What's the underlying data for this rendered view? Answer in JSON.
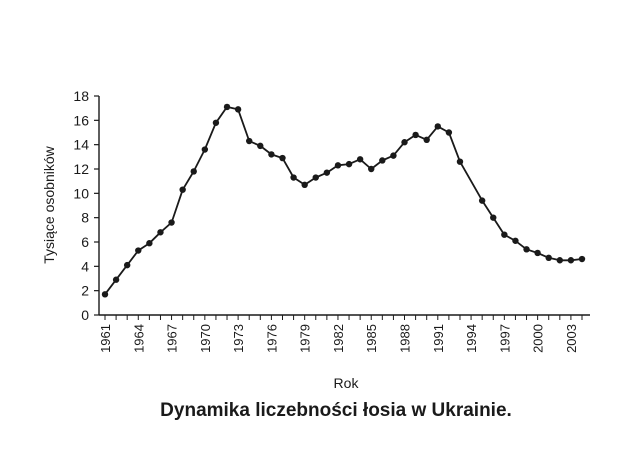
{
  "chart_data": {
    "type": "line",
    "title": "Dynamika liczebności łosia w Ukrainie.",
    "xlabel": "Rok",
    "ylabel": "Tysiące osobników",
    "xlim": [
      1961,
      2004
    ],
    "ylim": [
      0,
      18
    ],
    "x_ticks": [
      1961,
      1964,
      1967,
      1970,
      1973,
      1976,
      1979,
      1982,
      1985,
      1988,
      1991,
      1994,
      1997,
      2000,
      2003
    ],
    "y_ticks": [
      0,
      2,
      4,
      6,
      8,
      10,
      12,
      14,
      16,
      18
    ],
    "grid": false,
    "legend": "none",
    "series": [
      {
        "color": "#1a1a1a",
        "points": [
          [
            1961,
            1.7
          ],
          [
            1962,
            2.9
          ],
          [
            1963,
            4.1
          ],
          [
            1964,
            5.3
          ],
          [
            1965,
            5.9
          ],
          [
            1966,
            6.8
          ],
          [
            1967,
            7.6
          ],
          [
            1968,
            10.3
          ],
          [
            1969,
            11.8
          ],
          [
            1970,
            13.6
          ],
          [
            1971,
            15.8
          ],
          [
            1972,
            17.1
          ],
          [
            1973,
            16.9
          ],
          [
            1974,
            14.3
          ],
          [
            1975,
            13.9
          ],
          [
            1976,
            13.2
          ],
          [
            1977,
            12.9
          ],
          [
            1978,
            11.3
          ],
          [
            1979,
            10.7
          ],
          [
            1980,
            11.3
          ],
          [
            1981,
            11.7
          ],
          [
            1982,
            12.3
          ],
          [
            1983,
            12.4
          ],
          [
            1984,
            12.8
          ],
          [
            1985,
            12.0
          ],
          [
            1986,
            12.7
          ],
          [
            1987,
            13.1
          ],
          [
            1988,
            14.2
          ],
          [
            1989,
            14.8
          ],
          [
            1990,
            14.4
          ],
          [
            1991,
            15.5
          ],
          [
            1992,
            15.0
          ],
          [
            1993,
            12.6
          ],
          [
            1995,
            9.4
          ],
          [
            1996,
            8.0
          ],
          [
            1997,
            6.6
          ],
          [
            1998,
            6.1
          ],
          [
            1999,
            5.4
          ],
          [
            2000,
            5.1
          ],
          [
            2001,
            4.7
          ],
          [
            2002,
            4.5
          ],
          [
            2003,
            4.5
          ],
          [
            2004,
            4.6
          ]
        ]
      }
    ]
  }
}
